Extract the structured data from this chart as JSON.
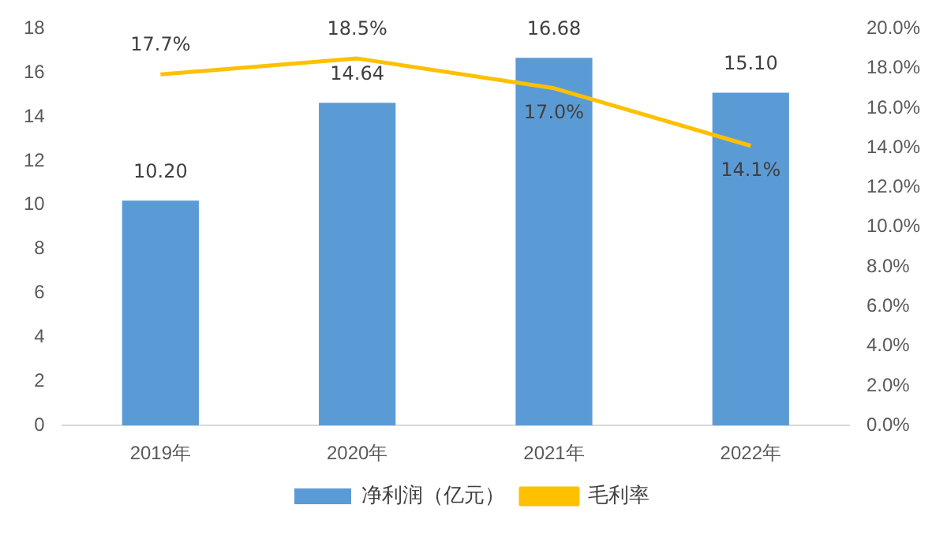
{
  "chart_data": {
    "type": "bar",
    "categories": [
      "2019年",
      "2020年",
      "2021年",
      "2022年"
    ],
    "series": [
      {
        "name": "净利润（亿元）",
        "color": "#5b9bd5",
        "values": [
          10.2,
          14.64,
          16.68,
          15.1
        ],
        "value_labels": [
          "10.20",
          "14.64",
          "16.68",
          "15.10"
        ]
      },
      {
        "name": "毛利率",
        "type": "line",
        "axis": "y2",
        "color": "#ffc000",
        "values": [
          17.7,
          18.5,
          17.0,
          14.1
        ],
        "value_labels": [
          "17.7%",
          "18.5%",
          "17.0%",
          "14.1%"
        ]
      }
    ],
    "ylim": [
      0,
      18
    ],
    "yticks": [
      0,
      2,
      4,
      6,
      8,
      10,
      12,
      14,
      16,
      18
    ],
    "y2lim": [
      0,
      20
    ],
    "y2ticks": [
      {
        "value": 0,
        "label": "0.0%"
      },
      {
        "value": 2,
        "label": "2.0%"
      },
      {
        "value": 4,
        "label": "4.0%"
      },
      {
        "value": 6,
        "label": "6.0%"
      },
      {
        "value": 8,
        "label": "8.0%"
      },
      {
        "value": 10,
        "label": "10.0%"
      },
      {
        "value": 12,
        "label": "12.0%"
      },
      {
        "value": 14,
        "label": "14.0%"
      },
      {
        "value": 16,
        "label": "16.0%"
      },
      {
        "value": 18,
        "label": "18.0%"
      },
      {
        "value": 20,
        "label": "20.0%"
      }
    ],
    "legend": "bottom",
    "marker": "none"
  }
}
